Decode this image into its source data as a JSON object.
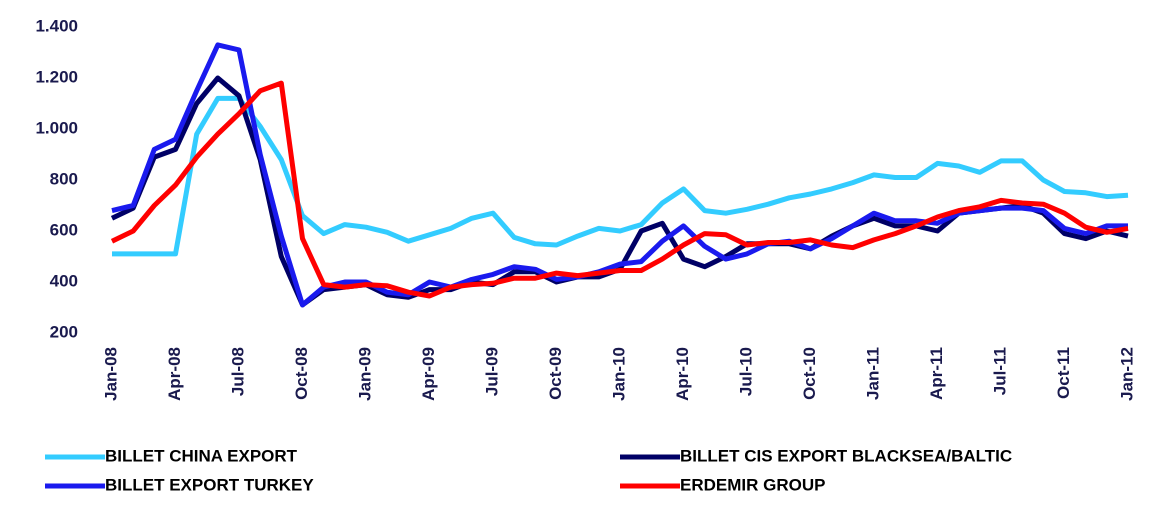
{
  "chart_data": {
    "type": "line",
    "categories": [
      "Jan-08",
      null,
      null,
      "Apr-08",
      null,
      null,
      "Jul-08",
      null,
      null,
      "Oct-08",
      null,
      null,
      "Jan-09",
      null,
      null,
      "Apr-09",
      null,
      null,
      "Jul-09",
      null,
      null,
      "Oct-09",
      null,
      null,
      "Jan-10",
      null,
      null,
      "Apr-10",
      null,
      null,
      "Jul-10",
      null,
      null,
      "Oct-10",
      null,
      null,
      "Jan-11",
      null,
      null,
      "Apr-11",
      null,
      null,
      "Jul-11",
      null,
      null,
      "Oct-11",
      null,
      null,
      "Jan-12"
    ],
    "series": [
      {
        "name": "BILLET CHINA EXPORT",
        "color": "#33ccff",
        "values": [
          510,
          510,
          510,
          510,
          980,
          1120,
          1120,
          1010,
          880,
          660,
          590,
          625,
          615,
          595,
          560,
          585,
          610,
          650,
          670,
          575,
          550,
          545,
          580,
          610,
          600,
          625,
          710,
          765,
          680,
          670,
          685,
          705,
          730,
          745,
          765,
          790,
          820,
          810,
          810,
          865,
          855,
          830,
          875,
          875,
          800,
          755,
          750,
          735,
          740
        ]
      },
      {
        "name": "BILLET CIS EXPORT BLACKSEA/BALTIC",
        "color": "#000066",
        "values": [
          650,
          690,
          890,
          920,
          1100,
          1200,
          1130,
          880,
          500,
          310,
          370,
          380,
          390,
          350,
          340,
          370,
          370,
          400,
          390,
          440,
          440,
          400,
          420,
          420,
          450,
          600,
          630,
          490,
          460,
          500,
          550,
          550,
          550,
          530,
          580,
          620,
          650,
          620,
          620,
          600,
          670,
          680,
          690,
          700,
          670,
          590,
          570,
          600,
          580
        ]
      },
      {
        "name": "BILLET EXPORT TURKEY",
        "color": "#1a1aee",
        "values": [
          680,
          700,
          920,
          960,
          1150,
          1330,
          1310,
          900,
          580,
          310,
          380,
          400,
          400,
          360,
          350,
          400,
          380,
          410,
          430,
          460,
          450,
          410,
          420,
          440,
          470,
          480,
          560,
          620,
          540,
          490,
          510,
          550,
          560,
          530,
          570,
          620,
          670,
          640,
          640,
          630,
          670,
          680,
          690,
          690,
          680,
          610,
          590,
          620,
          620
        ]
      },
      {
        "name": "ERDEMIR GROUP",
        "color": "#ff0000",
        "values": [
          560,
          600,
          700,
          780,
          890,
          980,
          1060,
          1150,
          1180,
          570,
          390,
          380,
          390,
          385,
          360,
          345,
          380,
          390,
          395,
          415,
          415,
          435,
          425,
          435,
          445,
          445,
          490,
          545,
          590,
          585,
          545,
          555,
          555,
          565,
          545,
          535,
          565,
          590,
          620,
          655,
          680,
          695,
          720,
          710,
          705,
          670,
          615,
          595,
          610
        ]
      }
    ],
    "ylim": [
      200,
      1400
    ],
    "yticks": [
      200,
      400,
      600,
      800,
      {
        "value": 1000,
        "label": "1.000"
      },
      {
        "value": 1200,
        "label": "1.200"
      },
      {
        "value": 1400,
        "label": "1.400"
      }
    ],
    "grid": false
  }
}
